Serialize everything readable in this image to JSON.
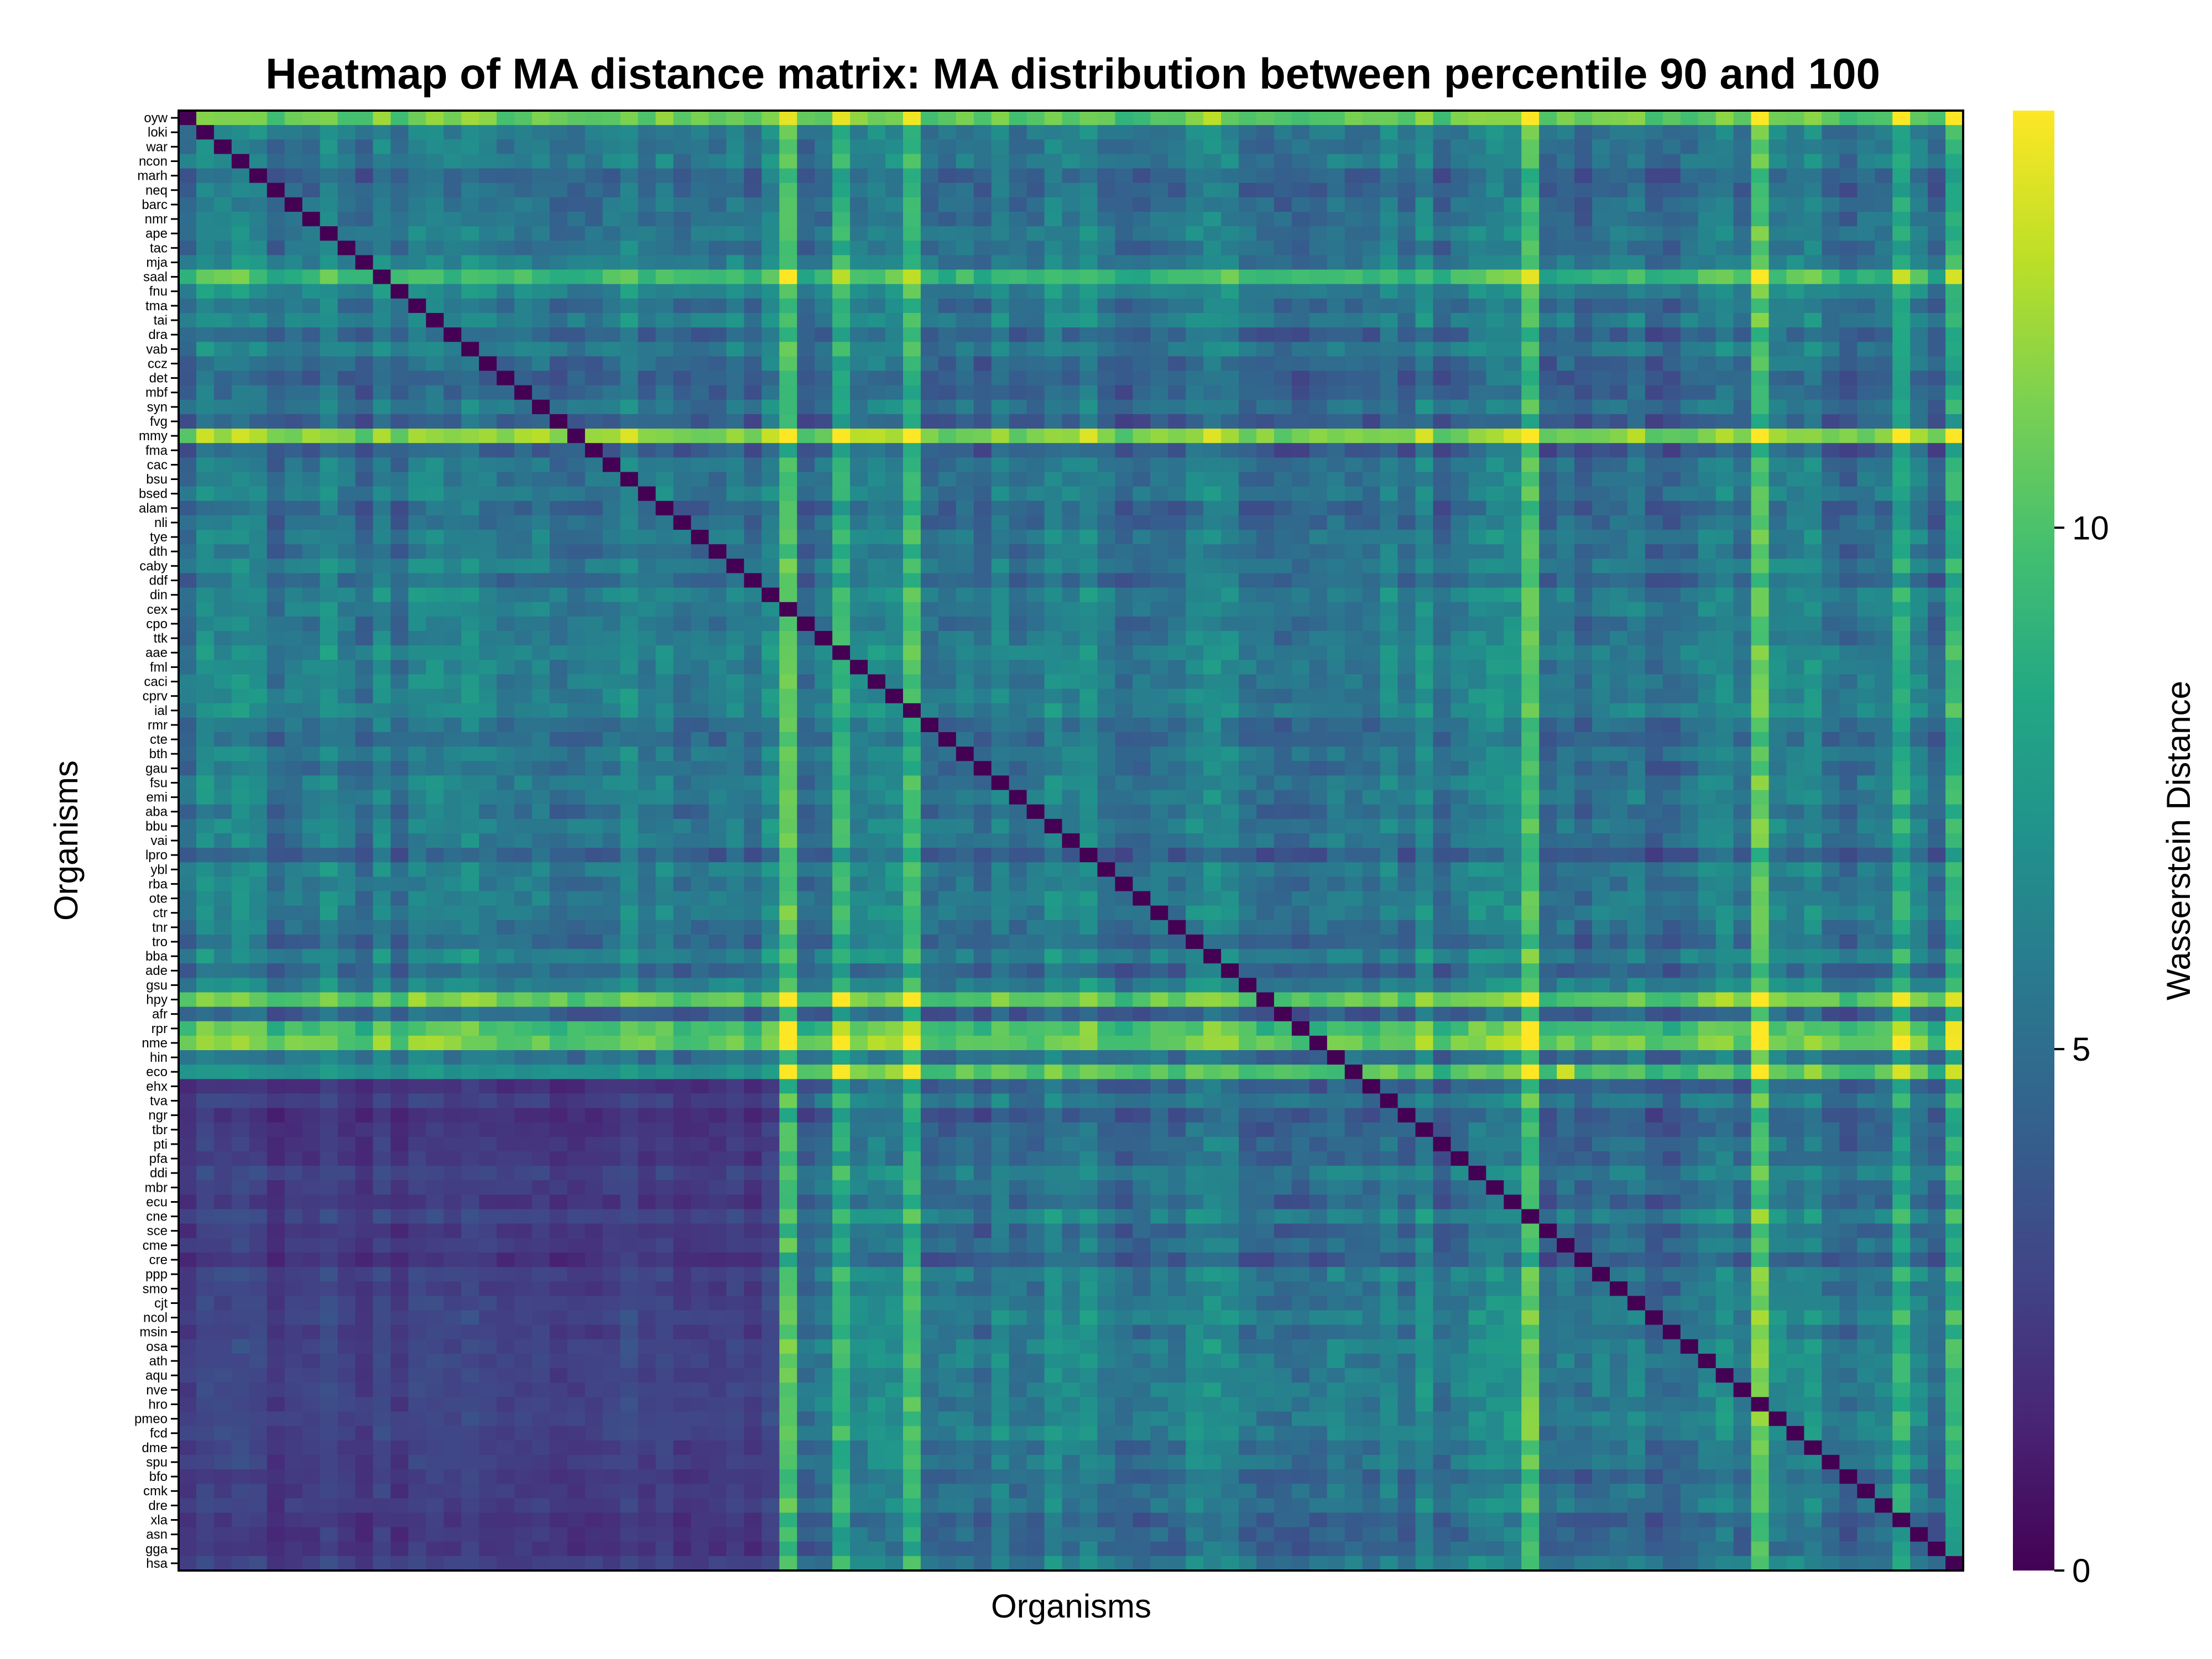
{
  "chart_data": {
    "type": "heatmap",
    "title": "Heatmap of MA distance matrix: MA distribution between percentile 90 and 100",
    "xlabel": "Organisms",
    "ylabel": "Organisms",
    "colorbar": {
      "label": "Wasserstein Distance",
      "range": [
        0,
        14
      ],
      "ticks": [
        0,
        5,
        10
      ],
      "colormap": "viridis"
    },
    "grid": false,
    "x_tick_labels_visible": false,
    "row_labels": [
      "oyw",
      "loki",
      "war",
      "ncon",
      "marh",
      "neq",
      "barc",
      "nmr",
      "ape",
      "tac",
      "mja",
      "saal",
      "fnu",
      "tma",
      "tai",
      "dra",
      "vab",
      "ccz",
      "det",
      "mbf",
      "syn",
      "fvg",
      "mmy",
      "fma",
      "cac",
      "bsu",
      "bsed",
      "alam",
      "nli",
      "tye",
      "dth",
      "caby",
      "ddf",
      "din",
      "cex",
      "cpo",
      "ttk",
      "aae",
      "fml",
      "caci",
      "cprv",
      "ial",
      "rmr",
      "cte",
      "bth",
      "gau",
      "fsu",
      "emi",
      "aba",
      "bbu",
      "vai",
      "lpro",
      "ybl",
      "rba",
      "ote",
      "ctr",
      "tnr",
      "tro",
      "bba",
      "ade",
      "gsu",
      "hpy",
      "afr",
      "rpr",
      "nme",
      "hin",
      "eco",
      "ehx",
      "tva",
      "ngr",
      "tbr",
      "pti",
      "pfa",
      "ddi",
      "mbr",
      "ecu",
      "cne",
      "sce",
      "cme",
      "cre",
      "ppp",
      "smo",
      "cjt",
      "ncol",
      "msin",
      "osa",
      "ath",
      "aqu",
      "nve",
      "hro",
      "pmeo",
      "fcd",
      "dme",
      "spu",
      "bfo",
      "cmk",
      "dre",
      "xla",
      "asn",
      "gga",
      "hsa"
    ]
  }
}
